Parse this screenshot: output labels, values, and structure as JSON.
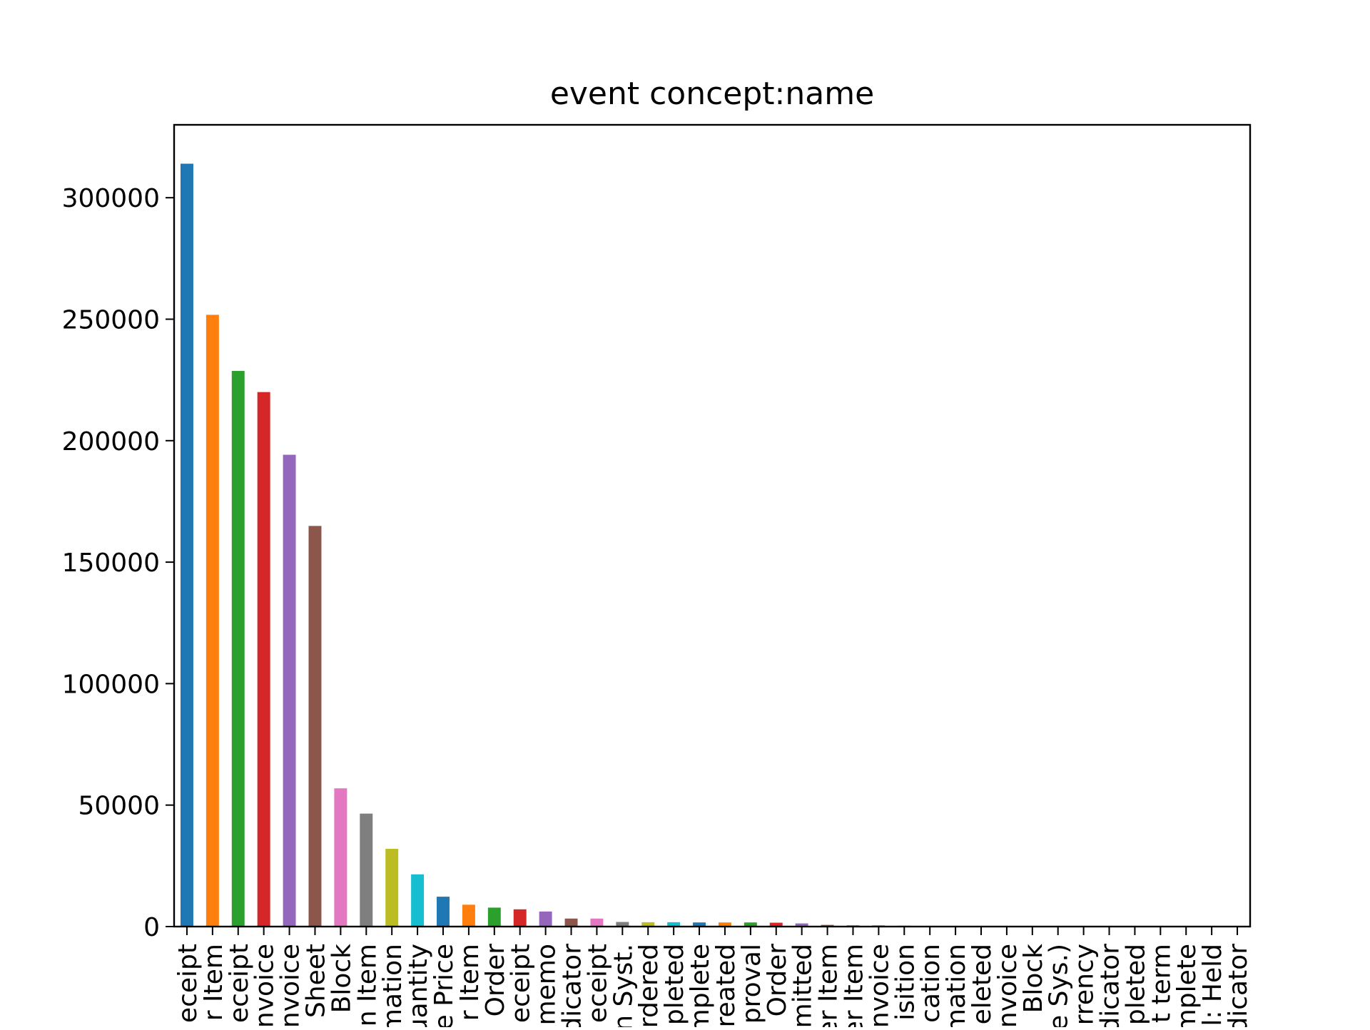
{
  "chart_data": {
    "type": "bar",
    "title": "event concept:name",
    "xlabel": "",
    "ylabel": "",
    "ylim": [
      0,
      330000
    ],
    "yticks": [
      0,
      50000,
      100000,
      150000,
      200000,
      250000,
      300000
    ],
    "ytick_labels": [
      "0",
      "50000",
      "100000",
      "150000",
      "200000",
      "250000",
      "300000"
    ],
    "grid": false,
    "legend": "none",
    "categories": [
      "eceipt",
      "r Item",
      "eceipt",
      "nvoice",
      "nvoice",
      "Sheet",
      "Block",
      "n Item",
      "mation",
      "uantity",
      "e Price",
      "r Item",
      "Order",
      "eceipt",
      "memo",
      "dicator",
      "eceipt",
      "n Syst.",
      "rdered",
      "npleted",
      "mplete",
      "reated",
      "proval",
      "Order",
      "mitted",
      "er Item",
      "er Item",
      "nvoice",
      "isition",
      "cation",
      "mation",
      "eleted",
      "nvoice",
      "Block",
      "e Sys.)",
      "rrency",
      "dicator",
      "pleted",
      "t term",
      "mplete",
      "l: Held",
      "dicator"
    ],
    "values": [
      314000,
      251800,
      228700,
      220000,
      194200,
      164900,
      56900,
      46500,
      32000,
      21500,
      12300,
      9000,
      7800,
      7100,
      6200,
      3300,
      3300,
      1900,
      1800,
      1800,
      1700,
      1700,
      1700,
      1600,
      1300,
      700,
      600,
      500,
      400,
      300,
      200,
      150,
      100,
      80,
      60,
      50,
      40,
      30,
      20,
      15,
      10,
      5
    ],
    "colors": [
      "#1f77b4",
      "#ff7f0e",
      "#2ca02c",
      "#d62728",
      "#9467bd",
      "#8c564b",
      "#e377c2",
      "#7f7f7f",
      "#bcbd22",
      "#17becf"
    ]
  }
}
